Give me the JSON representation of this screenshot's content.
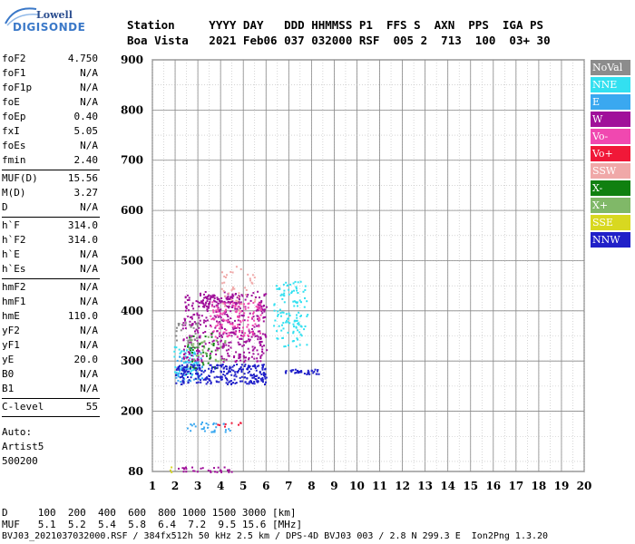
{
  "logo": {
    "line1": "Lowell",
    "line2": "DIGISONDE"
  },
  "header": {
    "row1": "Station     YYYY DAY   DDD HHMMSS P1  FFS S  AXN  PPS  IGA PS",
    "row2": "Boa Vista   2021 Feb06 037 032000 RSF  005 2  713  100  03+ 30"
  },
  "params": {
    "group1": [
      {
        "name": "foF2",
        "value": "4.750"
      },
      {
        "name": "foF1",
        "value": "N/A"
      },
      {
        "name": "foF1p",
        "value": "N/A"
      },
      {
        "name": "foE",
        "value": "N/A"
      },
      {
        "name": "foEp",
        "value": "0.40"
      },
      {
        "name": "fxI",
        "value": "5.05"
      },
      {
        "name": "foEs",
        "value": "N/A"
      },
      {
        "name": "fmin",
        "value": "2.40"
      }
    ],
    "group2": [
      {
        "name": "MUF(D)",
        "value": "15.56"
      },
      {
        "name": "M(D)",
        "value": "3.27"
      },
      {
        "name": "D",
        "value": "N/A"
      }
    ],
    "group3": [
      {
        "name": "h`F",
        "value": "314.0"
      },
      {
        "name": "h`F2",
        "value": "314.0"
      },
      {
        "name": "h`E",
        "value": "N/A"
      },
      {
        "name": "h`Es",
        "value": "N/A"
      }
    ],
    "group4": [
      {
        "name": "hmF2",
        "value": "N/A"
      },
      {
        "name": "hmF1",
        "value": "N/A"
      },
      {
        "name": "hmE",
        "value": "110.0"
      },
      {
        "name": "yF2",
        "value": "N/A"
      },
      {
        "name": "yF1",
        "value": "N/A"
      },
      {
        "name": "yE",
        "value": "20.0"
      },
      {
        "name": "B0",
        "value": "N/A"
      },
      {
        "name": "B1",
        "value": "N/A"
      }
    ],
    "group5": [
      {
        "name": "C-level",
        "value": "55"
      }
    ],
    "auto_label": "Auto:",
    "auto_name": "Artist5",
    "auto_code": "500200"
  },
  "legend": [
    {
      "label": "NoVal",
      "color": "#8c8c8c"
    },
    {
      "label": "NNE",
      "color": "#33e0f0"
    },
    {
      "label": "E",
      "color": "#3aa8f0"
    },
    {
      "label": "W",
      "color": "#a0109a"
    },
    {
      "label": "Vo-",
      "color": "#f048b0"
    },
    {
      "label": "Vo+",
      "color": "#f01838"
    },
    {
      "label": "SSW",
      "color": "#f0a8a8"
    },
    {
      "label": "X-",
      "color": "#108010"
    },
    {
      "label": "X+",
      "color": "#80b868"
    },
    {
      "label": "SSE",
      "color": "#d8d820"
    },
    {
      "label": "NNW",
      "color": "#2020c8"
    }
  ],
  "bottom": {
    "line1": "D     100  200  400  600  800 1000 1500 3000 [km]",
    "line2": "MUF   5.1  5.2  5.4  5.8  6.4  7.2  9.5 15.6 [MHz]",
    "line3": "BVJ03_2021037032000.RSF / 384fx512h 50 kHz 2.5 km / DPS-4D BVJ03 003 / 2.8 N 299.3 E  Ion2Png 1.3.20"
  },
  "chart_data": {
    "type": "scatter",
    "xlim": [
      1,
      20
    ],
    "ylim": [
      80,
      900
    ],
    "x_ticks": [
      1,
      2,
      3,
      4,
      5,
      6,
      7,
      8,
      9,
      10,
      11,
      12,
      13,
      14,
      15,
      16,
      17,
      18,
      19,
      20
    ],
    "y_ticks": [
      80,
      200,
      300,
      400,
      500,
      600,
      700,
      800,
      900
    ],
    "x_minor_per_major": 1,
    "y_minor_step": 50,
    "clusters": [
      {
        "series": "NNE",
        "color": "#33e0f0",
        "x": [
          6.3,
          7.8
        ],
        "y": [
          330,
          460
        ],
        "n": 120
      },
      {
        "series": "NNE",
        "color": "#33e0f0",
        "x": [
          1.9,
          3.0
        ],
        "y": [
          270,
          330
        ],
        "n": 60
      },
      {
        "series": "E",
        "color": "#3aa8f0",
        "x": [
          2.0,
          3.2
        ],
        "y": [
          260,
          320
        ],
        "n": 60
      },
      {
        "series": "E",
        "color": "#3aa8f0",
        "x": [
          2.5,
          4.5
        ],
        "y": [
          160,
          180
        ],
        "n": 30
      },
      {
        "series": "W",
        "color": "#a0109a",
        "x": [
          2.3,
          6.0
        ],
        "y": [
          300,
          440
        ],
        "n": 420
      },
      {
        "series": "W",
        "color": "#a0109a",
        "x": [
          3.0,
          4.8
        ],
        "y": [
          410,
          435
        ],
        "n": 80
      },
      {
        "series": "W",
        "color": "#a0109a",
        "x": [
          2.0,
          4.6
        ],
        "y": [
          80,
          90
        ],
        "n": 30
      },
      {
        "series": "Vo-",
        "color": "#f048b0",
        "x": [
          3.5,
          5.8
        ],
        "y": [
          350,
          420
        ],
        "n": 120
      },
      {
        "series": "Vo+",
        "color": "#f01838",
        "x": [
          3.5,
          5.0
        ],
        "y": [
          170,
          180
        ],
        "n": 8
      },
      {
        "series": "SSW",
        "color": "#f0a8a8",
        "x": [
          4.0,
          5.5
        ],
        "y": [
          400,
          490
        ],
        "n": 40
      },
      {
        "series": "X-",
        "color": "#108010",
        "x": [
          2.5,
          3.8
        ],
        "y": [
          280,
          360
        ],
        "n": 40
      },
      {
        "series": "X+",
        "color": "#80b868",
        "x": [
          2.5,
          4.2
        ],
        "y": [
          300,
          350
        ],
        "n": 30
      },
      {
        "series": "SSE",
        "color": "#d8d820",
        "x": [
          1.7,
          1.9
        ],
        "y": [
          80,
          90
        ],
        "n": 3
      },
      {
        "series": "NNW",
        "color": "#2020c8",
        "x": [
          2.0,
          6.0
        ],
        "y": [
          255,
          295
        ],
        "n": 260
      },
      {
        "series": "NNW",
        "color": "#2020c8",
        "x": [
          6.8,
          8.3
        ],
        "y": [
          275,
          285
        ],
        "n": 40
      },
      {
        "series": "NoVal",
        "color": "#8c8c8c",
        "x": [
          2.0,
          3.0
        ],
        "y": [
          330,
          380
        ],
        "n": 30
      }
    ]
  }
}
